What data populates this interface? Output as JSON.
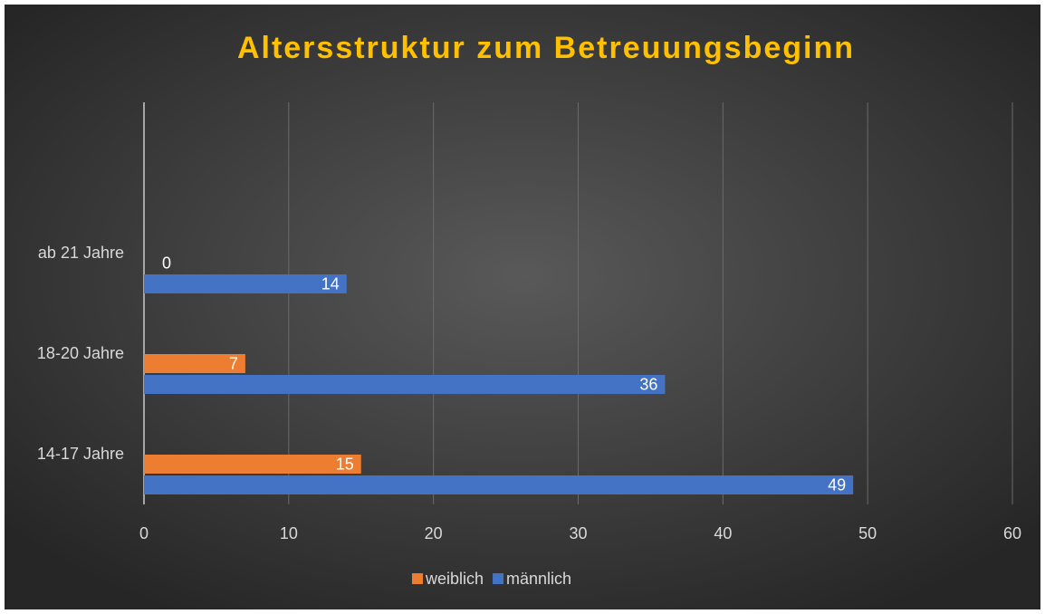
{
  "chart_data": {
    "type": "barh",
    "title": "Altersstruktur zum Betreuungsbeginn",
    "categories": [
      "14-17 Jahre",
      "18-20 Jahre",
      "ab 21 Jahre"
    ],
    "series": [
      {
        "name": "weiblich",
        "color": "#ed7d31",
        "values": [
          15,
          7,
          0
        ]
      },
      {
        "name": "männlich",
        "color": "#4472c4",
        "values": [
          49,
          36,
          14
        ]
      }
    ],
    "xlim": [
      0,
      60
    ],
    "xticks": [
      0,
      10,
      20,
      30,
      40,
      50,
      60
    ],
    "grid": true,
    "legend": "bottom"
  }
}
